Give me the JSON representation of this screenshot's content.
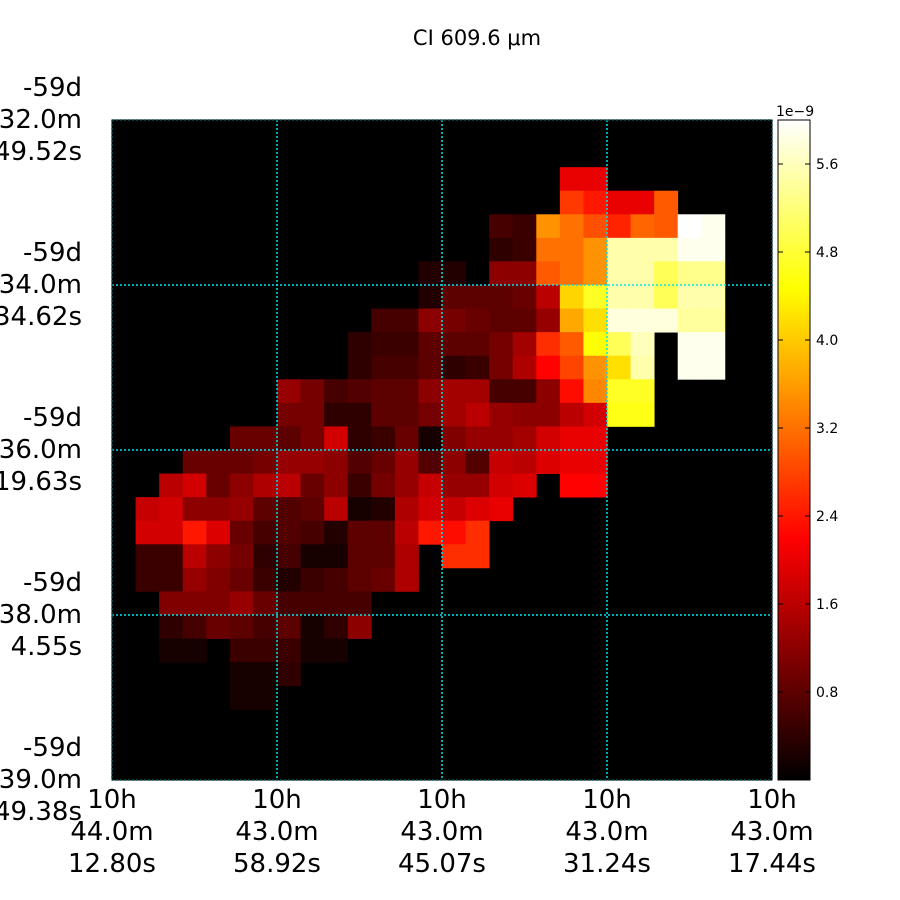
{
  "chart_data": {
    "type": "heatmap",
    "title": "CI 609.6 μm",
    "xlabel": "",
    "ylabel": "",
    "x_tick_labels": [
      [
        "10h",
        "44.0m",
        "12.80s"
      ],
      [
        "10h",
        "43.0m",
        "58.92s"
      ],
      [
        "10h",
        "43.0m",
        "45.07s"
      ],
      [
        "10h",
        "43.0m",
        "31.24s"
      ],
      [
        "10h",
        "43.0m",
        "17.44s"
      ]
    ],
    "y_tick_labels": [
      [
        "-59d",
        "32.0m",
        "49.52s"
      ],
      [
        "-59d",
        "34.0m",
        "34.62s"
      ],
      [
        "-59d",
        "36.0m",
        "19.63s"
      ],
      [
        "-59d",
        "38.0m",
        "4.55s"
      ],
      [
        "-59d",
        "39.0m",
        "49.38s"
      ]
    ],
    "grid": true,
    "colormap": "hot",
    "colorbar": {
      "exponent_label": "1e−9",
      "ticks": [
        "0.8",
        "1.6",
        "2.4",
        "3.2",
        "4.0",
        "4.8",
        "5.6"
      ],
      "tick_values": [
        0.8,
        1.6,
        2.4,
        3.2,
        4.0,
        4.8,
        5.6
      ],
      "vmin": 0.0,
      "vmax": 6.0
    },
    "grid_shape": [
      28,
      28
    ],
    "value_scale": "1e-9",
    "cells": [
      [
        2,
        19,
        2.0
      ],
      [
        2,
        20,
        2.0
      ],
      [
        3,
        19,
        2.7
      ],
      [
        3,
        20,
        2.4
      ],
      [
        3,
        21,
        2.0
      ],
      [
        3,
        22,
        2.0
      ],
      [
        3,
        23,
        3.0
      ],
      [
        4,
        16,
        0.6
      ],
      [
        4,
        17,
        0.5
      ],
      [
        4,
        18,
        3.5
      ],
      [
        4,
        19,
        3.2
      ],
      [
        4,
        20,
        2.9
      ],
      [
        4,
        21,
        2.5
      ],
      [
        4,
        22,
        3.1
      ],
      [
        4,
        23,
        3.0
      ],
      [
        4,
        24,
        6.0
      ],
      [
        4,
        25,
        5.9
      ],
      [
        5,
        16,
        0.4
      ],
      [
        5,
        17,
        0.5
      ],
      [
        5,
        18,
        3.2
      ],
      [
        5,
        19,
        3.2
      ],
      [
        5,
        20,
        3.5
      ],
      [
        5,
        21,
        5.5
      ],
      [
        5,
        22,
        5.5
      ],
      [
        5,
        23,
        5.5
      ],
      [
        5,
        24,
        5.9
      ],
      [
        5,
        25,
        5.9
      ],
      [
        6,
        13,
        0.3
      ],
      [
        6,
        14,
        0.3
      ],
      [
        6,
        16,
        1.2
      ],
      [
        6,
        17,
        1.2
      ],
      [
        6,
        18,
        3.0
      ],
      [
        6,
        19,
        3.2
      ],
      [
        6,
        20,
        3.5
      ],
      [
        6,
        21,
        5.5
      ],
      [
        6,
        22,
        5.5
      ],
      [
        6,
        23,
        5.0
      ],
      [
        6,
        24,
        5.3
      ],
      [
        6,
        25,
        5.3
      ],
      [
        7,
        13,
        0.3
      ],
      [
        7,
        14,
        0.8
      ],
      [
        7,
        15,
        0.8
      ],
      [
        7,
        16,
        0.8
      ],
      [
        7,
        17,
        0.9
      ],
      [
        7,
        18,
        1.6
      ],
      [
        7,
        19,
        4.1
      ],
      [
        7,
        20,
        4.7
      ],
      [
        7,
        21,
        5.5
      ],
      [
        7,
        22,
        5.5
      ],
      [
        7,
        23,
        5.0
      ],
      [
        7,
        24,
        5.5
      ],
      [
        7,
        25,
        5.5
      ],
      [
        8,
        11,
        0.6
      ],
      [
        8,
        12,
        0.6
      ],
      [
        8,
        13,
        1.2
      ],
      [
        8,
        14,
        1.0
      ],
      [
        8,
        15,
        0.9
      ],
      [
        8,
        16,
        0.8
      ],
      [
        8,
        17,
        0.8
      ],
      [
        8,
        18,
        1.3
      ],
      [
        8,
        19,
        3.7
      ],
      [
        8,
        20,
        4.2
      ],
      [
        8,
        21,
        5.8
      ],
      [
        8,
        22,
        5.8
      ],
      [
        8,
        23,
        5.8
      ],
      [
        8,
        24,
        5.4
      ],
      [
        8,
        25,
        5.4
      ],
      [
        9,
        10,
        0.4
      ],
      [
        9,
        11,
        0.5
      ],
      [
        9,
        12,
        0.5
      ],
      [
        9,
        13,
        0.8
      ],
      [
        9,
        14,
        0.8
      ],
      [
        9,
        15,
        0.8
      ],
      [
        9,
        16,
        1.0
      ],
      [
        9,
        17,
        1.4
      ],
      [
        9,
        18,
        2.6
      ],
      [
        9,
        19,
        3.0
      ],
      [
        9,
        20,
        4.5
      ],
      [
        9,
        21,
        5.0
      ],
      [
        9,
        22,
        5.6
      ],
      [
        9,
        24,
        5.9
      ],
      [
        9,
        25,
        5.9
      ],
      [
        10,
        10,
        0.4
      ],
      [
        10,
        11,
        0.6
      ],
      [
        10,
        12,
        0.6
      ],
      [
        10,
        13,
        0.8
      ],
      [
        10,
        14,
        0.4
      ],
      [
        10,
        15,
        0.5
      ],
      [
        10,
        16,
        1.0
      ],
      [
        10,
        17,
        1.5
      ],
      [
        10,
        18,
        2.2
      ],
      [
        10,
        19,
        2.8
      ],
      [
        10,
        20,
        3.5
      ],
      [
        10,
        21,
        4.2
      ],
      [
        10,
        22,
        5.5
      ],
      [
        10,
        24,
        5.9
      ],
      [
        10,
        25,
        5.9
      ],
      [
        11,
        7,
        1.3
      ],
      [
        11,
        8,
        1.0
      ],
      [
        11,
        9,
        0.6
      ],
      [
        11,
        10,
        0.7
      ],
      [
        11,
        11,
        0.8
      ],
      [
        11,
        12,
        0.8
      ],
      [
        11,
        13,
        1.2
      ],
      [
        11,
        14,
        1.4
      ],
      [
        11,
        15,
        1.4
      ],
      [
        11,
        16,
        0.6
      ],
      [
        11,
        17,
        0.6
      ],
      [
        11,
        18,
        1.2
      ],
      [
        11,
        19,
        2.3
      ],
      [
        11,
        20,
        3.4
      ],
      [
        11,
        21,
        4.7
      ],
      [
        11,
        22,
        4.7
      ],
      [
        12,
        7,
        1.0
      ],
      [
        12,
        8,
        1.0
      ],
      [
        12,
        9,
        0.4
      ],
      [
        12,
        10,
        0.4
      ],
      [
        12,
        11,
        0.8
      ],
      [
        12,
        12,
        0.8
      ],
      [
        12,
        13,
        1.0
      ],
      [
        12,
        14,
        1.4
      ],
      [
        12,
        15,
        1.6
      ],
      [
        12,
        16,
        1.3
      ],
      [
        12,
        17,
        1.2
      ],
      [
        12,
        18,
        1.2
      ],
      [
        12,
        19,
        1.6
      ],
      [
        12,
        20,
        1.8
      ],
      [
        12,
        21,
        4.6
      ],
      [
        12,
        22,
        4.6
      ],
      [
        13,
        5,
        0.9
      ],
      [
        13,
        6,
        0.9
      ],
      [
        13,
        7,
        0.8
      ],
      [
        13,
        8,
        1.0
      ],
      [
        13,
        9,
        1.8
      ],
      [
        13,
        10,
        0.4
      ],
      [
        13,
        11,
        0.5
      ],
      [
        13,
        12,
        0.9
      ],
      [
        13,
        13,
        0.2
      ],
      [
        13,
        14,
        1.1
      ],
      [
        13,
        15,
        1.3
      ],
      [
        13,
        16,
        1.3
      ],
      [
        13,
        17,
        1.4
      ],
      [
        13,
        18,
        1.8
      ],
      [
        13,
        19,
        2.0
      ],
      [
        13,
        20,
        2.0
      ],
      [
        14,
        3,
        0.9
      ],
      [
        14,
        4,
        0.9
      ],
      [
        14,
        5,
        0.9
      ],
      [
        14,
        6,
        1.0
      ],
      [
        14,
        7,
        1.3
      ],
      [
        14,
        8,
        1.3
      ],
      [
        14,
        9,
        1.2
      ],
      [
        14,
        10,
        0.7
      ],
      [
        14,
        11,
        0.9
      ],
      [
        14,
        12,
        1.3
      ],
      [
        14,
        13,
        0.7
      ],
      [
        14,
        14,
        1.2
      ],
      [
        14,
        15,
        0.7
      ],
      [
        14,
        16,
        1.7
      ],
      [
        14,
        17,
        1.6
      ],
      [
        14,
        18,
        1.9
      ],
      [
        14,
        19,
        2.0
      ],
      [
        14,
        20,
        2.0
      ],
      [
        15,
        2,
        1.6
      ],
      [
        15,
        3,
        1.8
      ],
      [
        15,
        4,
        0.9
      ],
      [
        15,
        5,
        1.2
      ],
      [
        15,
        6,
        1.5
      ],
      [
        15,
        7,
        1.6
      ],
      [
        15,
        8,
        0.9
      ],
      [
        15,
        9,
        1.2
      ],
      [
        15,
        10,
        0.5
      ],
      [
        15,
        11,
        1.0
      ],
      [
        15,
        12,
        1.3
      ],
      [
        15,
        13,
        1.7
      ],
      [
        15,
        14,
        1.3
      ],
      [
        15,
        15,
        1.3
      ],
      [
        15,
        16,
        1.8
      ],
      [
        15,
        17,
        1.9
      ],
      [
        15,
        19,
        2.2
      ],
      [
        15,
        20,
        2.2
      ],
      [
        16,
        1,
        1.7
      ],
      [
        16,
        2,
        1.8
      ],
      [
        16,
        3,
        1.2
      ],
      [
        16,
        4,
        1.2
      ],
      [
        16,
        5,
        1.3
      ],
      [
        16,
        6,
        0.8
      ],
      [
        16,
        7,
        0.7
      ],
      [
        16,
        8,
        0.8
      ],
      [
        16,
        9,
        1.6
      ],
      [
        16,
        10,
        0.2
      ],
      [
        16,
        11,
        0.3
      ],
      [
        16,
        12,
        1.5
      ],
      [
        16,
        13,
        1.8
      ],
      [
        16,
        14,
        1.7
      ],
      [
        16,
        15,
        1.9
      ],
      [
        16,
        16,
        2.0
      ],
      [
        17,
        1,
        1.8
      ],
      [
        17,
        2,
        1.8
      ],
      [
        17,
        3,
        2.4
      ],
      [
        17,
        4,
        1.9
      ],
      [
        17,
        5,
        0.9
      ],
      [
        17,
        6,
        0.6
      ],
      [
        17,
        7,
        0.7
      ],
      [
        17,
        8,
        0.6
      ],
      [
        17,
        9,
        0.3
      ],
      [
        17,
        10,
        0.8
      ],
      [
        17,
        11,
        0.8
      ],
      [
        17,
        12,
        1.6
      ],
      [
        17,
        13,
        2.4
      ],
      [
        17,
        14,
        2.3
      ],
      [
        17,
        15,
        2.6
      ],
      [
        18,
        1,
        0.5
      ],
      [
        18,
        2,
        0.5
      ],
      [
        18,
        3,
        1.6
      ],
      [
        18,
        4,
        1.2
      ],
      [
        18,
        5,
        1.0
      ],
      [
        18,
        6,
        0.4
      ],
      [
        18,
        7,
        0.6
      ],
      [
        18,
        8,
        0.2
      ],
      [
        18,
        9,
        0.2
      ],
      [
        18,
        10,
        0.8
      ],
      [
        18,
        11,
        0.8
      ],
      [
        18,
        12,
        1.5
      ],
      [
        18,
        14,
        2.6
      ],
      [
        18,
        15,
        2.6
      ],
      [
        19,
        1,
        0.5
      ],
      [
        19,
        2,
        0.5
      ],
      [
        19,
        3,
        1.3
      ],
      [
        19,
        4,
        1.1
      ],
      [
        19,
        5,
        0.9
      ],
      [
        19,
        6,
        0.5
      ],
      [
        19,
        7,
        0.3
      ],
      [
        19,
        8,
        0.5
      ],
      [
        19,
        9,
        0.6
      ],
      [
        19,
        10,
        0.8
      ],
      [
        19,
        11,
        0.9
      ],
      [
        19,
        12,
        1.5
      ],
      [
        20,
        2,
        1.1
      ],
      [
        20,
        3,
        1.1
      ],
      [
        20,
        4,
        1.1
      ],
      [
        20,
        5,
        1.3
      ],
      [
        20,
        6,
        0.9
      ],
      [
        20,
        7,
        0.6
      ],
      [
        20,
        8,
        0.6
      ],
      [
        20,
        9,
        0.6
      ],
      [
        20,
        10,
        0.6
      ],
      [
        21,
        2,
        0.4
      ],
      [
        21,
        3,
        0.6
      ],
      [
        21,
        4,
        0.9
      ],
      [
        21,
        5,
        0.8
      ],
      [
        21,
        6,
        0.6
      ],
      [
        21,
        7,
        0.8
      ],
      [
        21,
        8,
        0.2
      ],
      [
        21,
        9,
        0.4
      ],
      [
        21,
        10,
        1.2
      ],
      [
        22,
        2,
        0.2
      ],
      [
        22,
        3,
        0.2
      ],
      [
        22,
        5,
        0.5
      ],
      [
        22,
        6,
        0.5
      ],
      [
        22,
        7,
        0.5
      ],
      [
        22,
        8,
        0.2
      ],
      [
        22,
        9,
        0.2
      ],
      [
        23,
        5,
        0.2
      ],
      [
        23,
        6,
        0.2
      ],
      [
        23,
        7,
        0.4
      ],
      [
        24,
        5,
        0.2
      ],
      [
        24,
        6,
        0.2
      ]
    ]
  }
}
